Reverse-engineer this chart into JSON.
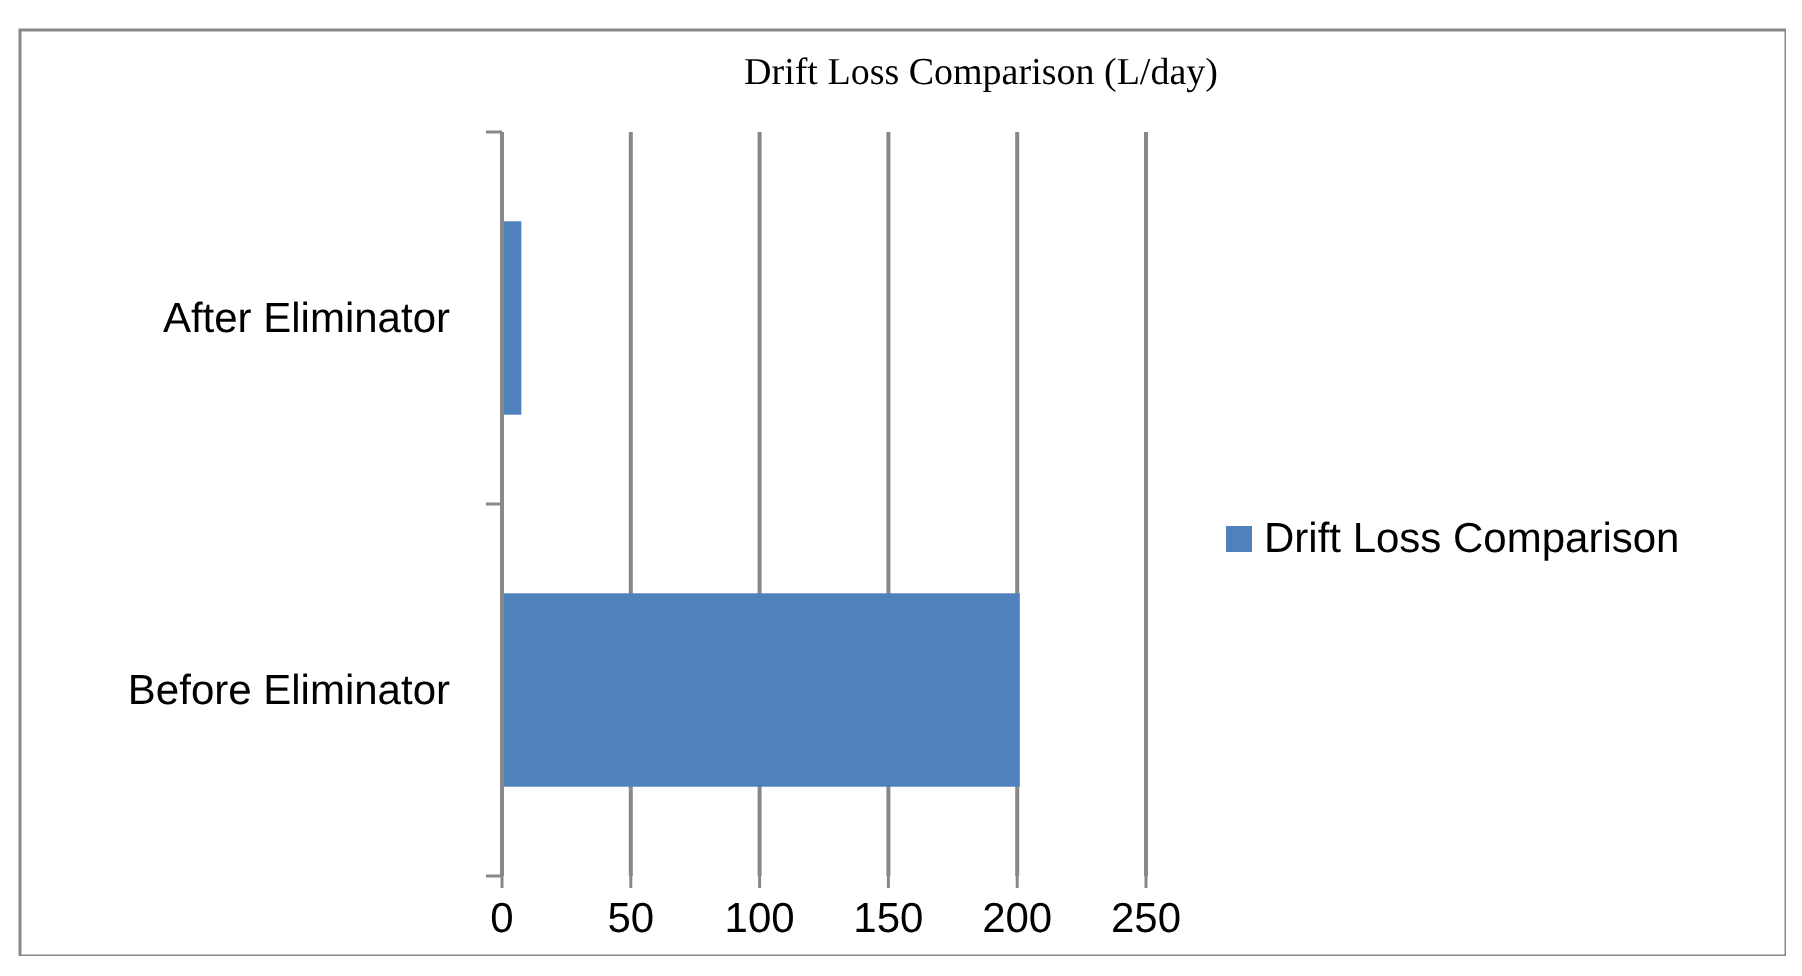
{
  "chart_data": {
    "type": "bar",
    "orientation": "horizontal",
    "title": "Drift Loss Comparison (L/day)",
    "categories": [
      "After Eliminator",
      "Before Eliminator"
    ],
    "series": [
      {
        "name": "Drift Loss Comparison",
        "color": "#4f81bd",
        "values": [
          7.5,
          201
        ]
      }
    ],
    "xlim": [
      0,
      250
    ],
    "xticks": [
      0,
      50,
      100,
      150,
      200,
      250
    ],
    "grid": "x",
    "legend": "right"
  }
}
